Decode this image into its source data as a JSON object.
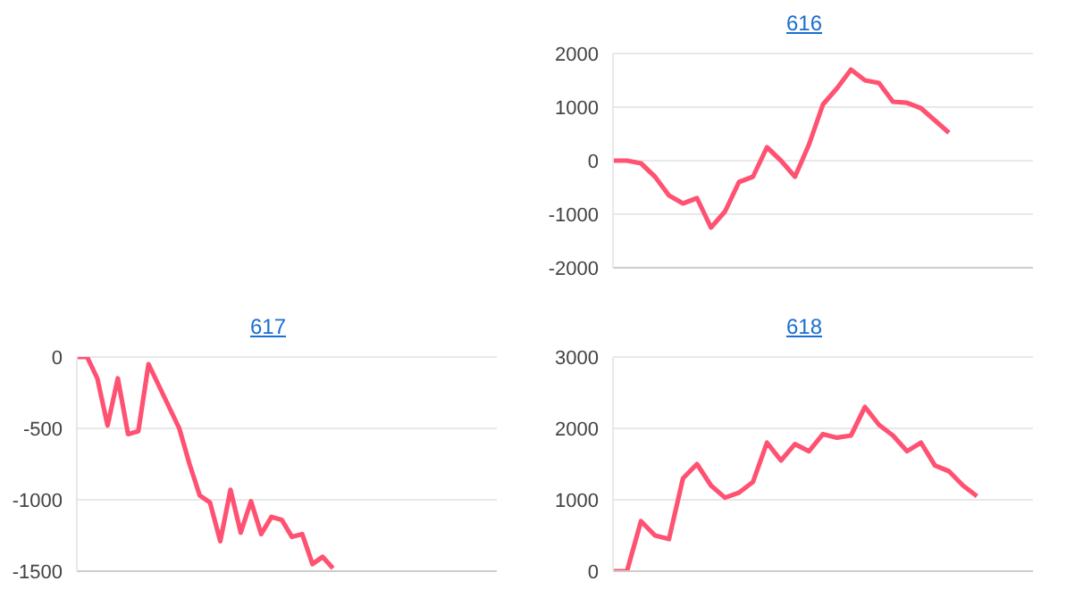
{
  "chart_data": [
    {
      "type": "line",
      "title": "616",
      "categories": [
        null,
        null,
        null,
        null,
        null,
        null,
        null,
        null,
        null,
        null,
        null,
        null,
        null,
        null,
        null,
        null,
        null,
        null,
        null,
        null,
        null,
        null,
        null,
        null,
        null,
        null,
        null,
        null,
        null,
        null,
        null
      ],
      "series": [
        {
          "color": "#ff5272",
          "values": [
            0,
            0,
            -50,
            -300,
            -650,
            -800,
            -700,
            -1250,
            -950,
            -400,
            -300,
            250,
            0,
            -300,
            300,
            1050,
            1350,
            1700,
            1500,
            1450,
            1100,
            1080,
            980,
            750,
            520,
            null,
            null,
            null,
            null,
            null,
            null
          ]
        }
      ],
      "ylim": [
        -2000,
        2000
      ],
      "yticks": [
        -2000,
        -1000,
        0,
        1000,
        2000
      ],
      "grid": "y",
      "tick_labels": "y",
      "marker": "none"
    },
    {
      "type": "line",
      "title": "617",
      "categories": [
        null,
        null,
        null,
        null,
        null,
        null,
        null,
        null,
        null,
        null,
        null,
        null,
        null,
        null,
        null,
        null,
        null,
        null,
        null,
        null,
        null,
        null,
        null,
        null,
        null,
        null,
        null,
        null,
        null,
        null,
        null,
        null,
        null,
        null,
        null,
        null,
        null,
        null,
        null,
        null,
        null,
        null
      ],
      "series": [
        {
          "color": "#ff5272",
          "values": [
            0,
            0,
            -150,
            -480,
            -150,
            -540,
            -520,
            -50,
            -200,
            -350,
            -500,
            -750,
            -970,
            -1020,
            -1290,
            -930,
            -1230,
            -1010,
            -1240,
            -1120,
            -1140,
            -1260,
            -1240,
            -1450,
            -1400,
            -1480,
            null,
            null,
            null,
            null,
            null,
            null,
            null,
            null,
            null,
            null,
            null,
            null,
            null,
            null,
            null,
            null
          ]
        }
      ],
      "ylim": [
        -1500,
        0
      ],
      "yticks": [
        -1500,
        -1000,
        -500,
        0
      ],
      "grid": "y",
      "tick_labels": "y",
      "marker": "none"
    },
    {
      "type": "line",
      "title": "618",
      "categories": [
        null,
        null,
        null,
        null,
        null,
        null,
        null,
        null,
        null,
        null,
        null,
        null,
        null,
        null,
        null,
        null,
        null,
        null,
        null,
        null,
        null,
        null,
        null,
        null,
        null,
        null,
        null,
        null,
        null,
        null,
        null
      ],
      "series": [
        {
          "color": "#ff5272",
          "values": [
            0,
            0,
            700,
            500,
            450,
            1300,
            1500,
            1200,
            1030,
            1100,
            1250,
            1800,
            1550,
            1780,
            1680,
            1920,
            1870,
            1900,
            2300,
            2050,
            1900,
            1680,
            1800,
            1480,
            1400,
            1200,
            1050,
            null,
            null,
            null,
            null
          ]
        }
      ],
      "ylim": [
        0,
        3000
      ],
      "yticks": [
        0,
        1000,
        2000,
        3000
      ],
      "grid": "y",
      "tick_labels": "y",
      "marker": "none"
    }
  ]
}
